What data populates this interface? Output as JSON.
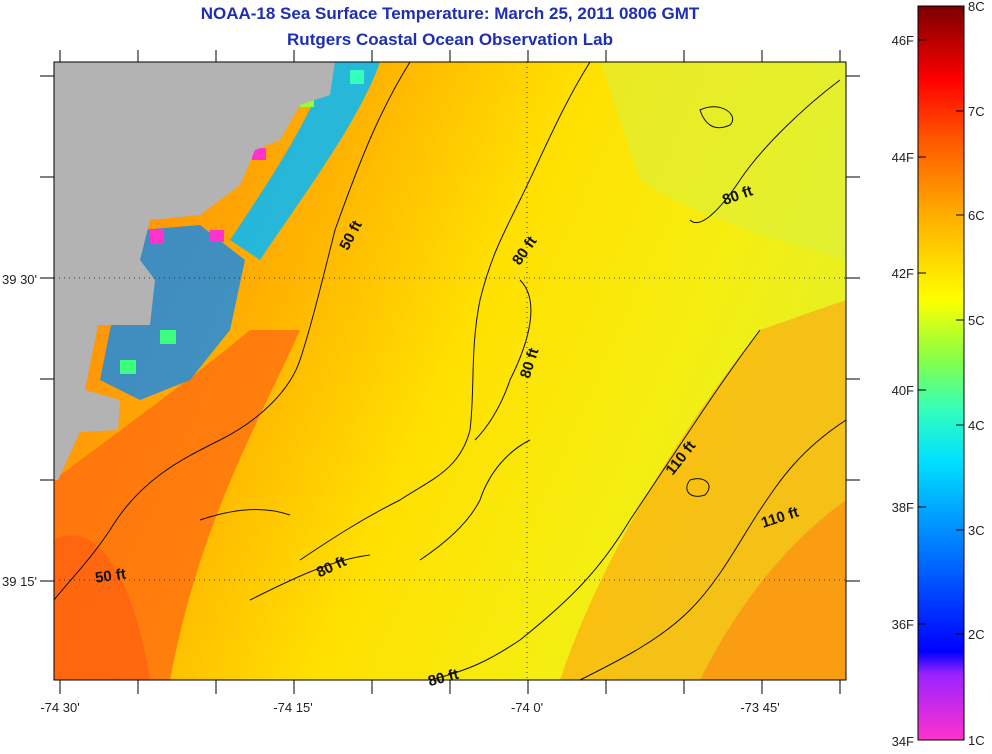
{
  "header": {
    "title": "NOAA-18 Sea Surface Temperature:  March 25, 2011 0806 GMT",
    "subtitle": "Rutgers Coastal Ocean Observation Lab"
  },
  "map": {
    "x_ticks": [
      "-74 30'",
      "-74 15'",
      "-74 0'",
      "-73 45'"
    ],
    "y_ticks": [
      "39 30'",
      "39 15'"
    ],
    "contour_labels": [
      {
        "text": "50 ft"
      },
      {
        "text": "50 ft"
      },
      {
        "text": "80 ft"
      },
      {
        "text": "80 ft"
      },
      {
        "text": "80 ft"
      },
      {
        "text": "80 ft"
      },
      {
        "text": "80 ft"
      },
      {
        "text": "110 ft"
      },
      {
        "text": "110 ft"
      }
    ],
    "land_color": "#b3b3b3"
  },
  "colorbar": {
    "fahrenheit_labels": [
      "46F",
      "44F",
      "42F",
      "40F",
      "38F",
      "36F",
      "34F"
    ],
    "celsius_labels": [
      "8C",
      "7C",
      "6C",
      "5C",
      "4C",
      "3C",
      "2C",
      "1C"
    ],
    "colors": [
      "#ff33cc",
      "#7a1cff",
      "#0000ff",
      "#0060ff",
      "#00b4ff",
      "#00ffff",
      "#33ff99",
      "#99ff33",
      "#ffff00",
      "#ffcc00",
      "#ff9900",
      "#ff6600",
      "#ff2200",
      "#cc0000",
      "#8b0000"
    ]
  }
}
